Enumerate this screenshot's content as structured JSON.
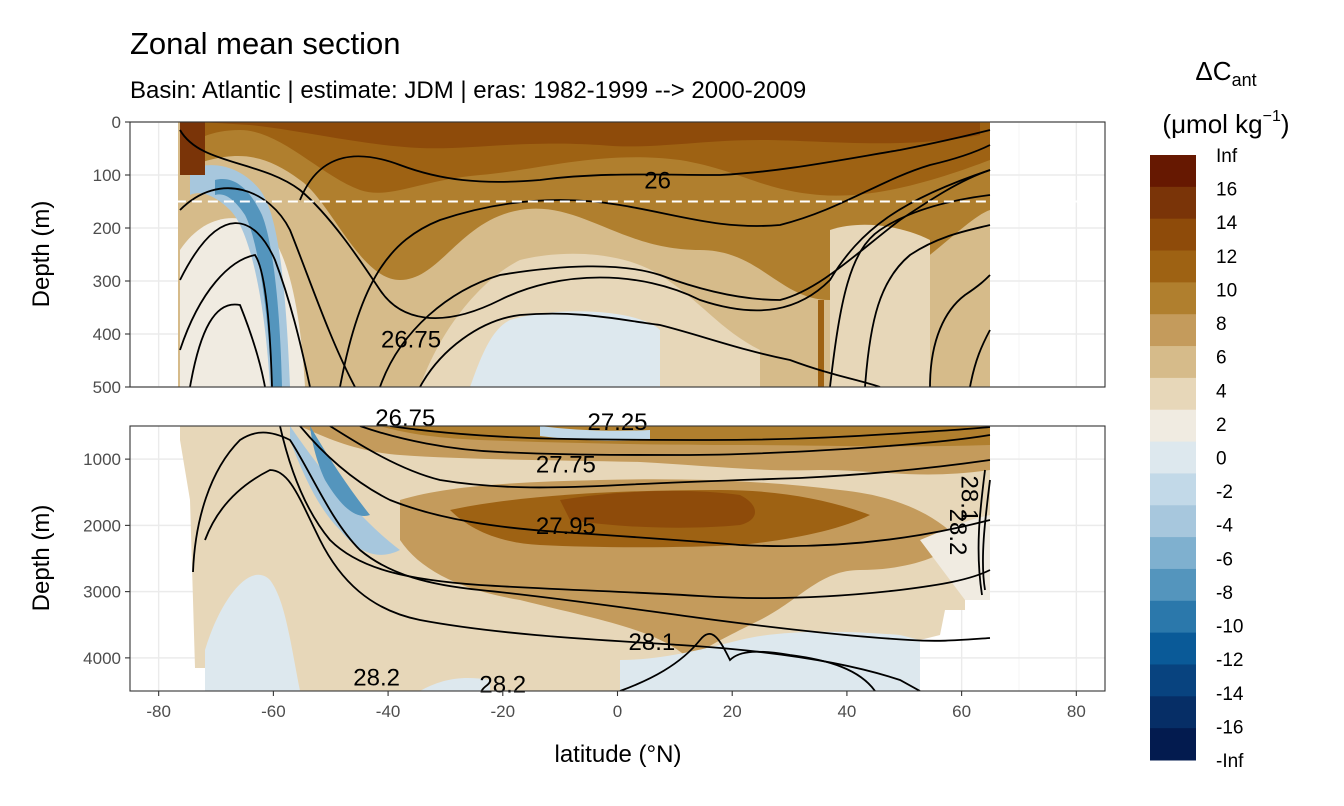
{
  "chart_data": {
    "type": "heatmap",
    "title": "Zonal mean section",
    "subtitle": "Basin: Atlantic | estimate: JDM  | eras: 1982-1999 --> 2000-2009",
    "xlabel": "latitude (°N)",
    "ylabel": "Depth (m)",
    "xlim": [
      -85,
      85
    ],
    "x_ticks": [
      -80,
      -60,
      -40,
      -20,
      0,
      20,
      40,
      60,
      80
    ],
    "x_tick_labels": [
      "-80",
      "-60",
      "-40",
      "-20",
      "0",
      "20",
      "40",
      "60",
      "80"
    ],
    "data_lat_range": [
      -77,
      64
    ],
    "panels": [
      {
        "name": "upper",
        "depth_range": [
          0,
          500
        ],
        "y_ticks": [
          0,
          100,
          200,
          300,
          400,
          500
        ],
        "y_tick_labels": [
          "0",
          "100",
          "200",
          "300",
          "400",
          "500"
        ]
      },
      {
        "name": "lower",
        "depth_range": [
          500,
          4500
        ],
        "y_ticks": [
          1000,
          2000,
          3000,
          4000
        ],
        "y_tick_labels": [
          "1000",
          "2000",
          "3000",
          "4000"
        ]
      }
    ],
    "reference_line": {
      "depth": 150,
      "style": "dashed",
      "color": "#ffffff"
    },
    "legend": {
      "title_main": "ΔC",
      "title_sub": "ant",
      "units_prefix": "(μmol kg",
      "units_sup": "−1",
      "units_suffix": ")",
      "labels": [
        "Inf",
        "16",
        "14",
        "12",
        "10",
        "8",
        "6",
        "4",
        "2",
        "0",
        "-2",
        "-4",
        "-6",
        "-8",
        "-10",
        "-12",
        "-14",
        "-16",
        "-Inf"
      ],
      "colors": [
        "#661801",
        "#7a3408",
        "#8e4b0a",
        "#9e6213",
        "#b07f2e",
        "#c49b5c",
        "#d6bb8a",
        "#e7d7b9",
        "#f0ebe1",
        "#dde8ee",
        "#c2d9e8",
        "#a7c7dd",
        "#7fb0cf",
        "#5495bd",
        "#2b78ab",
        "#0a5a98",
        "#08437f",
        "#062e66",
        "#031b4f"
      ]
    },
    "contour_labels": [
      {
        "text": "26",
        "lat": 7,
        "depth": 125,
        "panel": "upper"
      },
      {
        "text": "26.75",
        "lat": -36,
        "depth": 425,
        "panel": "upper"
      },
      {
        "text": "26.75",
        "lat": -37,
        "depth": 500,
        "panel": "lower"
      },
      {
        "text": "27.25",
        "lat": 0,
        "depth": 560,
        "panel": "lower"
      },
      {
        "text": "27.75",
        "lat": -9,
        "depth": 1200,
        "panel": "lower"
      },
      {
        "text": "27.95",
        "lat": -9,
        "depth": 2130,
        "panel": "lower"
      },
      {
        "text": "28.1",
        "lat": 6,
        "depth": 3880,
        "panel": "lower"
      },
      {
        "text": "28.2",
        "lat": -42,
        "depth": 4420,
        "panel": "lower"
      },
      {
        "text": "28.2",
        "lat": -20,
        "depth": 4520,
        "panel": "lower"
      },
      {
        "text": "28.2",
        "lat": 58,
        "depth": 2100,
        "panel": "lower"
      },
      {
        "text": "28.1",
        "lat": 60,
        "depth": 1600,
        "panel": "lower"
      }
    ]
  }
}
